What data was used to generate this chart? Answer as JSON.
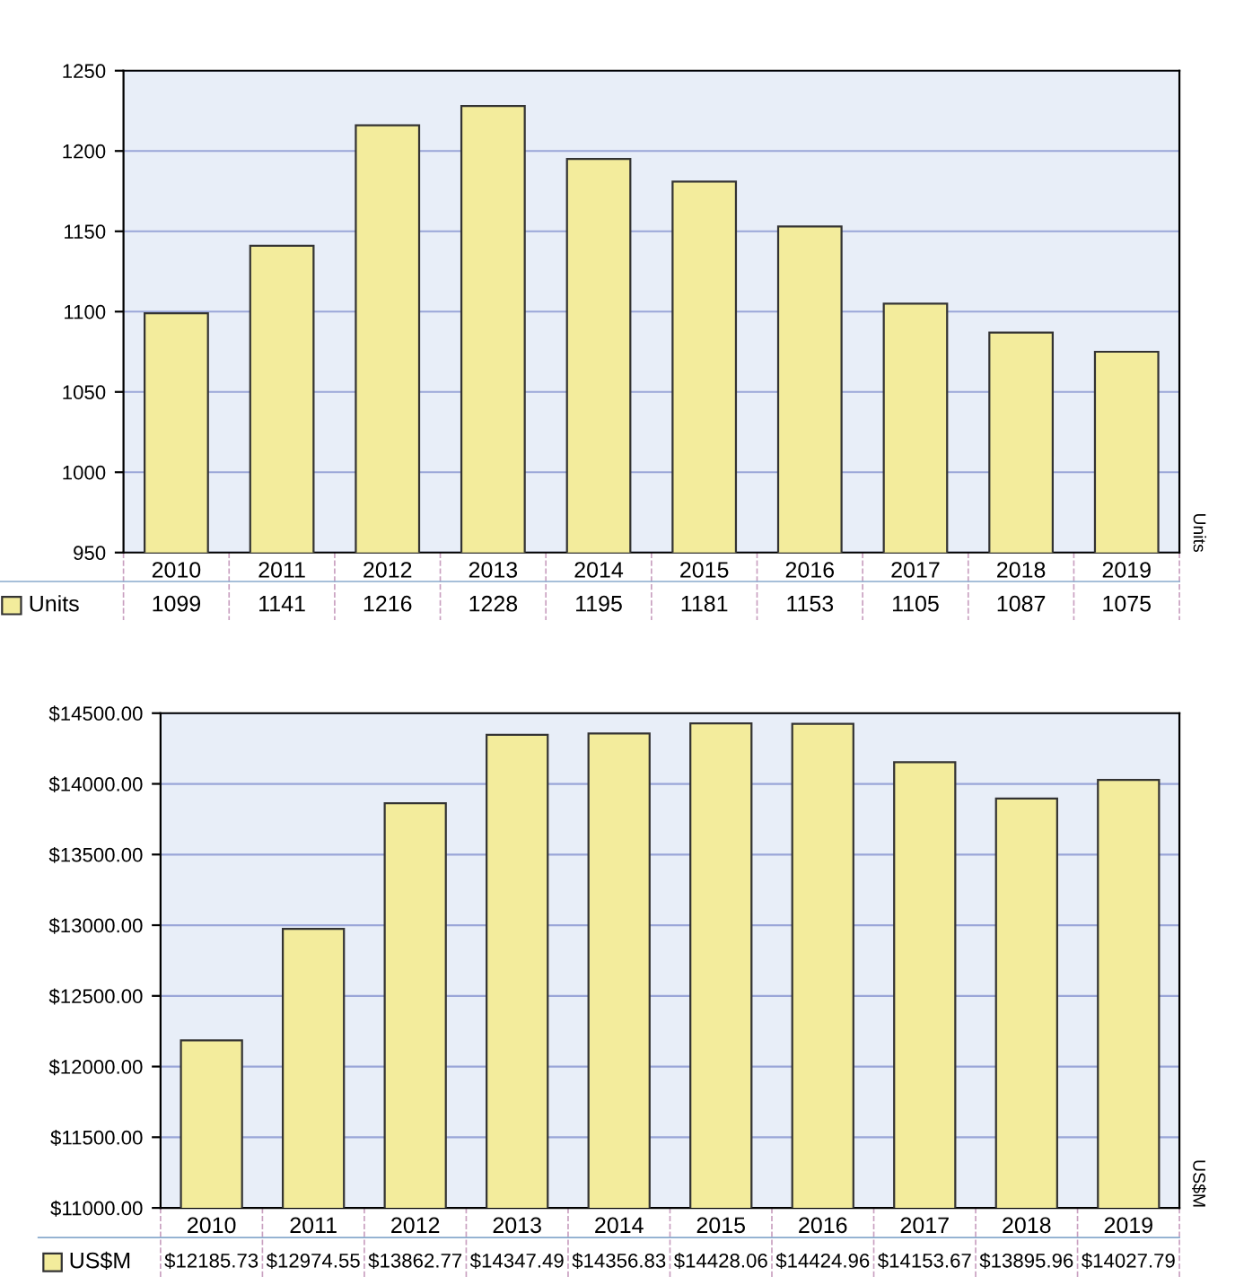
{
  "chart_data": [
    {
      "type": "bar",
      "categories": [
        "2010",
        "2011",
        "2012",
        "2013",
        "2014",
        "2015",
        "2016",
        "2017",
        "2018",
        "2019"
      ],
      "series": [
        {
          "name": "Units",
          "color": "#f3ec9c",
          "values": [
            1099,
            1141,
            1216,
            1228,
            1195,
            1181,
            1153,
            1105,
            1087,
            1075
          ]
        }
      ],
      "ylabel": "Units",
      "ylim": [
        950,
        1250
      ],
      "yticks": [
        950,
        1000,
        1050,
        1100,
        1150,
        1200,
        1250
      ],
      "grid": "y",
      "legend": "bottom",
      "data_labels": true
    },
    {
      "type": "bar",
      "categories": [
        "2010",
        "2011",
        "2012",
        "2013",
        "2014",
        "2015",
        "2016",
        "2017",
        "2018",
        "2019"
      ],
      "series": [
        {
          "name": "US$M",
          "color": "#f3ec9c",
          "values": [
            12185.73,
            12974.55,
            13862.77,
            14347.49,
            14356.83,
            14428.06,
            14424.96,
            14153.67,
            13895.96,
            14027.79
          ],
          "value_labels": [
            "$12185.73",
            "$12974.55",
            "$13862.77",
            "$14347.49",
            "$14356.83",
            "$14428.06",
            "$14424.96",
            "$14153.67",
            "$13895.96",
            "$14027.79"
          ]
        }
      ],
      "ylabel": "US$M",
      "ylim": [
        11000,
        14500
      ],
      "yticks": [
        {
          "value": 11000,
          "label": "$11000.00"
        },
        {
          "value": 11500,
          "label": "$11500.00"
        },
        {
          "value": 12000,
          "label": "$12000.00"
        },
        {
          "value": 12500,
          "label": "$12500.00"
        },
        {
          "value": 13000,
          "label": "$13000.00"
        },
        {
          "value": 13500,
          "label": "$13500.00"
        },
        {
          "value": 14000,
          "label": "$14000.00"
        },
        {
          "value": 14500,
          "label": "$14500.00"
        }
      ],
      "grid": "y",
      "legend": "bottom"
    }
  ]
}
